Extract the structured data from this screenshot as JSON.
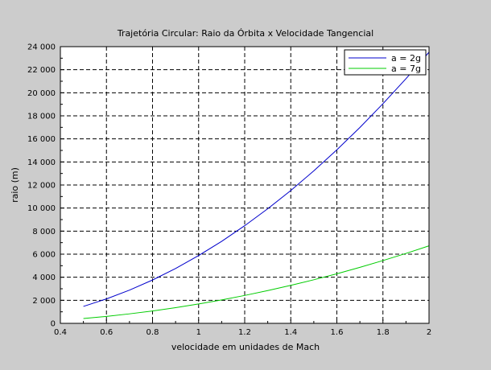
{
  "chart_data": {
    "type": "line",
    "title": "Trajetória Circular: Raio da Órbita x Velocidade Tangencial",
    "xlabel": "velocidade em unidades de Mach",
    "ylabel": "raio (m)",
    "xlim": [
      0.4,
      2.0
    ],
    "ylim": [
      0,
      24000
    ],
    "xticks": [
      0.4,
      0.6,
      0.8,
      1.0,
      1.2,
      1.4,
      1.6,
      1.8,
      2.0
    ],
    "xtick_labels": [
      "0.4",
      "0.6",
      "0.8",
      "1",
      "1.2",
      "1.4",
      "1.6",
      "1.8",
      "2"
    ],
    "yticks": [
      0,
      2000,
      4000,
      6000,
      8000,
      10000,
      12000,
      14000,
      16000,
      18000,
      20000,
      22000,
      24000
    ],
    "ytick_labels": [
      "0",
      "2 000",
      "4 000",
      "6 000",
      "8 000",
      "10 000",
      "12 000",
      "14 000",
      "16 000",
      "18 000",
      "20 000",
      "22 000",
      "24 000"
    ],
    "grid": true,
    "legend_position": "top-right",
    "x": [
      0.5,
      0.6,
      0.7,
      0.8,
      0.9,
      1.0,
      1.1,
      1.2,
      1.3,
      1.4,
      1.5,
      1.6,
      1.7,
      1.8,
      1.9,
      2.0
    ],
    "series": [
      {
        "name": "a = 2g",
        "color": "#0000cc",
        "values": [
          1470,
          2120,
          2880,
          3760,
          4760,
          5880,
          7110,
          8470,
          9940,
          11520,
          13230,
          15050,
          16990,
          19050,
          21220,
          23520
        ]
      },
      {
        "name": "a = 7g",
        "color": "#00cc00",
        "values": [
          420,
          605,
          824,
          1076,
          1361,
          1680,
          2033,
          2420,
          2840,
          3294,
          3781,
          4302,
          4857,
          5445,
          6066,
          6722
        ]
      }
    ]
  }
}
